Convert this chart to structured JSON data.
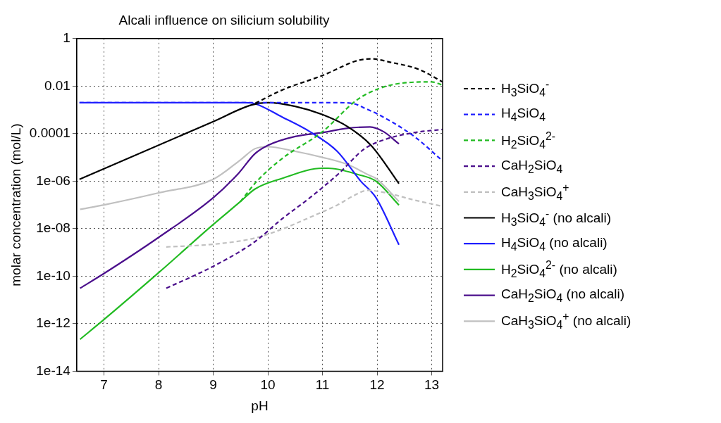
{
  "chart_data": {
    "type": "line",
    "title": "Alcali influence on silicium solubility",
    "xlabel": "pH",
    "ylabel": "molar concentration (mol/L)",
    "log": "y",
    "grid": true,
    "legend": "right",
    "marker": "none",
    "xlim": [
      6.5,
      13.2
    ],
    "xticks": [
      7,
      8,
      9,
      10,
      11,
      12,
      13
    ],
    "ylim": [
      1e-14,
      1
    ],
    "yticks": [
      {
        "value": 1e-14,
        "label": "1e-14"
      },
      {
        "value": 1e-12,
        "label": "1e-12"
      },
      {
        "value": 1e-10,
        "label": "1e-10"
      },
      {
        "value": 1e-08,
        "label": "1e-08"
      },
      {
        "value": 1e-06,
        "label": "1e-06"
      },
      {
        "value": 0.0001,
        "label": "0.0001"
      },
      0.01,
      1
    ],
    "series": [
      {
        "name": "H$_{3}$SiO$_{4}$$^{-}$",
        "color": "#000000",
        "line_style": "dashed",
        "x": [
          9.77,
          10.26,
          11,
          11.65,
          11.9,
          12.25,
          12.76,
          13.2
        ],
        "values": [
          0.0019,
          0.0068,
          0.028,
          0.12,
          0.14,
          0.1,
          0.051,
          0.015
        ]
      },
      {
        "name": "H$_{4}$SiO$_{4}$",
        "color": "#1f1fff",
        "line_style": "dashed",
        "x": [
          6.55,
          11.3,
          11.58,
          11.8,
          12.03,
          12.68,
          13.2
        ],
        "values": [
          0.002,
          0.002,
          0.0018,
          0.0011,
          0.00063,
          7.6e-05,
          7.1e-06
        ]
      },
      {
        "name": "H$_{2}$SiO$_{4}$$^{2-}$",
        "color": "#22bb22",
        "line_style": "dashed",
        "x": [
          9.5,
          9.8,
          10.26,
          11,
          11.63,
          12.03,
          12.54,
          13,
          13.2
        ],
        "values": [
          1.4e-07,
          1e-06,
          8.9e-06,
          0.00012,
          0.0026,
          0.0078,
          0.014,
          0.015,
          0.011
        ]
      },
      {
        "name": "CaH$_{2}$SiO$_{4}$",
        "color": "#4b0f8c",
        "line_style": "dashed",
        "x": [
          8.14,
          9,
          9.76,
          10.26,
          10.77,
          11.3,
          11.77,
          12.17,
          12.68,
          13.2
        ],
        "values": [
          3.1e-11,
          2.6e-10,
          2.8e-09,
          2.6e-08,
          2e-07,
          2.1e-06,
          2.3e-05,
          5.9e-05,
          0.00011,
          0.00015
        ]
      },
      {
        "name": "CaH$_{3}$SiO$_{4}$$^{+}$",
        "color": "#c0c0c0",
        "line_style": "dashed",
        "x": [
          8.14,
          9,
          9.76,
          10.26,
          10.77,
          11.27,
          11.58,
          11.83,
          12.17,
          12.68,
          13.2
        ],
        "values": [
          1.7e-09,
          2.2e-09,
          4e-09,
          9.5e-09,
          3e-08,
          9.8e-08,
          2.5e-07,
          4.1e-07,
          3.2e-07,
          1.6e-07,
          8.7e-08
        ]
      },
      {
        "name": "H$_{3}$SiO$_{4}$$^{-}$ (no alcali)",
        "color": "#000000",
        "line_style": "solid",
        "x": [
          6.55,
          9.0,
          9.7,
          10.0,
          10.5,
          11,
          11.47,
          11.9,
          12.4
        ],
        "values": [
          1.2e-06,
          0.00032,
          0.0016,
          0.002,
          0.0014,
          0.00063,
          0.00019,
          3e-05,
          7.9e-07
        ]
      },
      {
        "name": "H$_{4}$SiO$_{4}$ (no alcali)",
        "color": "#1f1fff",
        "line_style": "solid",
        "x": [
          6.55,
          9.6,
          9.77,
          10.26,
          10.77,
          11.27,
          11.7,
          11.98,
          12.4
        ],
        "values": [
          0.002,
          0.002,
          0.0018,
          0.0005,
          0.00012,
          1.8e-05,
          1e-06,
          2e-07,
          2.1e-09
        ]
      },
      {
        "name": "H$_{2}$SiO$_{4}$$^{2-}$ (no alcali)",
        "color": "#22bb22",
        "line_style": "solid",
        "x": [
          6.56,
          7,
          8,
          9,
          9.5,
          9.76,
          10.26,
          11,
          11.1,
          11.65,
          11.98,
          12.4
        ],
        "values": [
          2.2e-13,
          1.5e-12,
          1.4e-10,
          1.5e-08,
          1.4e-07,
          4.6e-07,
          1.3e-06,
          3.5e-06,
          3.5e-06,
          1.9e-06,
          1e-06,
          9.8e-08
        ]
      },
      {
        "name": "CaH$_{2}$SiO$_{4}$ (no alcali)",
        "color": "#4b0f8c",
        "line_style": "solid",
        "x": [
          6.56,
          7,
          8,
          9,
          9.46,
          9.76,
          10,
          10.5,
          11,
          11.47,
          11.87,
          12.12,
          12.4
        ],
        "values": [
          3.1e-11,
          1.3e-10,
          4.3e-09,
          2e-07,
          2.1e-06,
          1.4e-05,
          3.2e-05,
          7.6e-05,
          0.00011,
          0.00017,
          0.00019,
          0.00012,
          3.7e-05
        ]
      },
      {
        "name": "CaH$_{3}$SiO$_{4}$$^{+}$ (no alcali)",
        "color": "#c0c0c0",
        "line_style": "solid",
        "x": [
          6.56,
          7,
          8,
          9,
          9.5,
          9.76,
          10,
          10.5,
          11,
          11.47,
          11.87,
          11.98,
          12.4
        ],
        "values": [
          6.5e-08,
          1e-07,
          3.2e-07,
          1.2e-06,
          7.9e-06,
          2.3e-05,
          2.8e-05,
          1.8e-05,
          1e-05,
          4.9e-06,
          1.7e-06,
          1.3e-06,
          1.4e-07
        ]
      }
    ]
  }
}
